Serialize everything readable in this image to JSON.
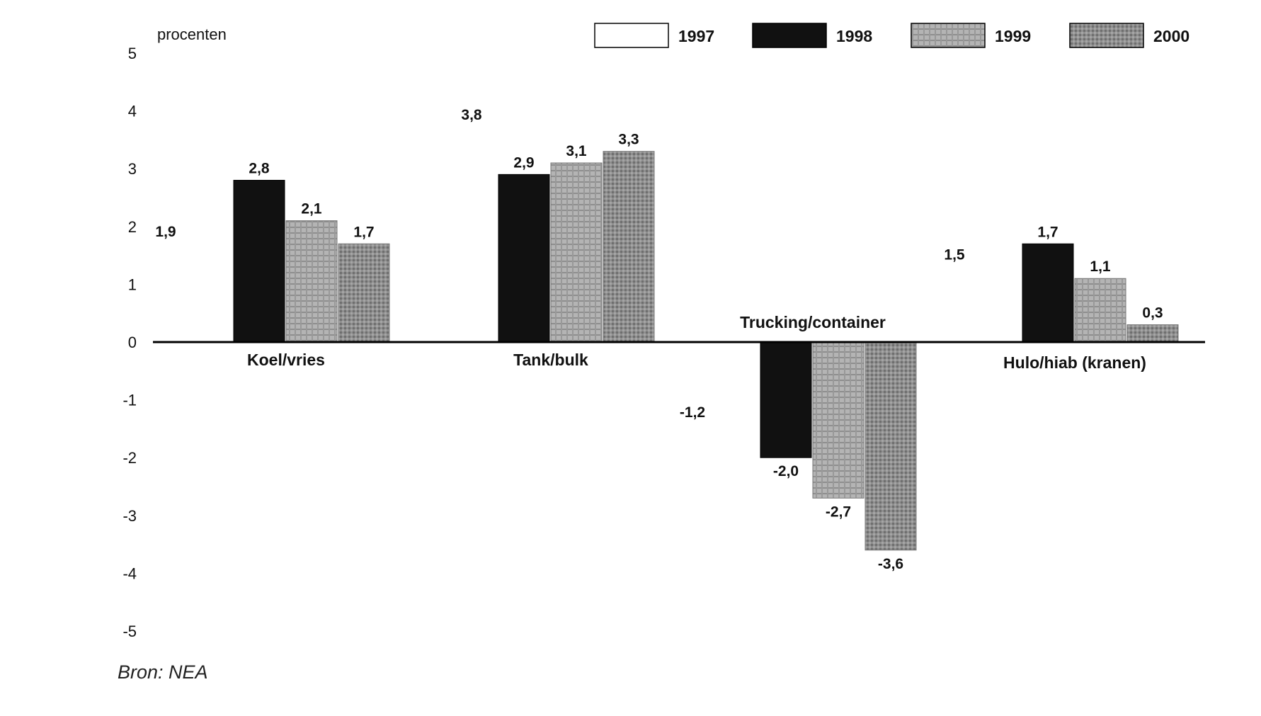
{
  "chart_data": {
    "type": "bar",
    "unit_label": "procenten",
    "source": "Bron: NEA",
    "ylim": [
      -5,
      5
    ],
    "yticks": [
      5,
      4,
      3,
      2,
      1,
      0,
      -1,
      -2,
      -3,
      -4,
      -5
    ],
    "categories": [
      "Koel/vries",
      "Tank/bulk",
      "Trucking/container",
      "Hulo/hiab (kranen)"
    ],
    "series": [
      {
        "name": "1997",
        "values": [
          1.9,
          3.8,
          -1.2,
          1.5
        ],
        "labels": [
          "1,9",
          "3,8",
          "-1,2",
          "1,5"
        ],
        "color": "#ffffff"
      },
      {
        "name": "1998",
        "values": [
          2.8,
          2.9,
          -2.0,
          1.7
        ],
        "labels": [
          "2,8",
          "2,9",
          "-2,0",
          "1,7"
        ],
        "color": "#111111"
      },
      {
        "name": "1999",
        "values": [
          2.1,
          3.1,
          -2.7,
          1.1
        ],
        "labels": [
          "2,1",
          "3,1",
          "-2,7",
          "1,1"
        ],
        "color": "#a8a8a8"
      },
      {
        "name": "2000",
        "values": [
          1.7,
          3.3,
          -3.6,
          0.3
        ],
        "labels": [
          "1,7",
          "3,3",
          "-3,6",
          "0,3"
        ],
        "color": "#8a8a8a"
      }
    ],
    "legend_position": "top-right",
    "grid": false
  }
}
